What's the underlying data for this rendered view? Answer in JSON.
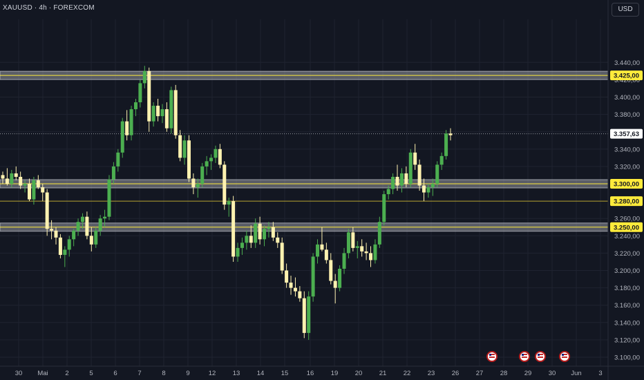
{
  "header": {
    "symbol_label": "XAUUSD · 4h · FOREXCOM"
  },
  "currency_button": {
    "label": "USD"
  },
  "colors": {
    "background": "#131722",
    "bull": "#4caf50",
    "bear": "#fff2b0",
    "price_label": "#ffeb3b",
    "zone_band": "#9598a1",
    "ticks": "#b2b5be"
  },
  "chart_data": {
    "type": "candlestick",
    "title": "XAUUSD · 4h · FOREXCOM",
    "currency": "USD",
    "ylim": [
      3090,
      3458
    ],
    "y_ticks": [
      "3.440,00",
      "3.420,00",
      "3.400,00",
      "3.380,00",
      "3.360,00",
      "3.340,00",
      "3.320,00",
      "3.300,00",
      "3.280,00",
      "3.260,00",
      "3.240,00",
      "3.220,00",
      "3.200,00",
      "3.180,00",
      "3.160,00",
      "3.140,00",
      "3.120,00",
      "3.100,00"
    ],
    "x_ticks": [
      "30",
      "Mai",
      "2",
      "5",
      "6",
      "7",
      "8",
      "9",
      "12",
      "13",
      "14",
      "15",
      "16",
      "19",
      "20",
      "21",
      "22",
      "23",
      "26",
      "27",
      "28",
      "29",
      "30",
      "Jun",
      "3"
    ],
    "grid": true,
    "levels": [
      {
        "value": 3425,
        "label": "3.425,00",
        "style": "zone"
      },
      {
        "value": 3300,
        "label": "3.300,00",
        "style": "zone"
      },
      {
        "value": 3280,
        "label": "3.280,00",
        "style": "line"
      },
      {
        "value": 3250,
        "label": "3.250,00",
        "style": "zone"
      }
    ],
    "last_price": {
      "value": 3357.63,
      "label": "3.357,63"
    },
    "event_icons": [
      "27",
      "29a",
      "29b",
      "30b"
    ],
    "candles": [
      [
        3310,
        3314,
        3300,
        3306
      ],
      [
        3306,
        3318,
        3298,
        3300
      ],
      [
        3300,
        3316,
        3296,
        3312
      ],
      [
        3312,
        3320,
        3304,
        3308
      ],
      [
        3308,
        3314,
        3294,
        3298
      ],
      [
        3298,
        3304,
        3290,
        3300
      ],
      [
        3300,
        3306,
        3280,
        3282
      ],
      [
        3282,
        3308,
        3276,
        3304
      ],
      [
        3304,
        3310,
        3294,
        3296
      ],
      [
        3296,
        3300,
        3280,
        3290
      ],
      [
        3290,
        3294,
        3240,
        3248
      ],
      [
        3248,
        3258,
        3236,
        3246
      ],
      [
        3246,
        3250,
        3230,
        3238
      ],
      [
        3238,
        3242,
        3214,
        3218
      ],
      [
        3218,
        3228,
        3204,
        3224
      ],
      [
        3224,
        3240,
        3216,
        3236
      ],
      [
        3236,
        3248,
        3228,
        3246
      ],
      [
        3246,
        3260,
        3240,
        3256
      ],
      [
        3256,
        3266,
        3248,
        3262
      ],
      [
        3262,
        3268,
        3236,
        3240
      ],
      [
        3240,
        3250,
        3222,
        3230
      ],
      [
        3230,
        3250,
        3226,
        3246
      ],
      [
        3246,
        3264,
        3240,
        3260
      ],
      [
        3260,
        3270,
        3250,
        3262
      ],
      [
        3262,
        3310,
        3258,
        3305
      ],
      [
        3305,
        3325,
        3300,
        3320
      ],
      [
        3320,
        3340,
        3314,
        3336
      ],
      [
        3336,
        3376,
        3330,
        3372
      ],
      [
        3372,
        3385,
        3350,
        3356
      ],
      [
        3356,
        3390,
        3350,
        3386
      ],
      [
        3386,
        3398,
        3378,
        3394
      ],
      [
        3394,
        3420,
        3388,
        3416
      ],
      [
        3416,
        3436,
        3410,
        3430
      ],
      [
        3430,
        3434,
        3360,
        3372
      ],
      [
        3372,
        3394,
        3366,
        3390
      ],
      [
        3390,
        3398,
        3372,
        3378
      ],
      [
        3378,
        3392,
        3370,
        3386
      ],
      [
        3386,
        3394,
        3360,
        3364
      ],
      [
        3364,
        3412,
        3358,
        3408
      ],
      [
        3408,
        3414,
        3352,
        3356
      ],
      [
        3356,
        3362,
        3326,
        3330
      ],
      [
        3330,
        3356,
        3322,
        3350
      ],
      [
        3350,
        3356,
        3302,
        3306
      ],
      [
        3306,
        3312,
        3288,
        3296
      ],
      [
        3296,
        3306,
        3284,
        3300
      ],
      [
        3300,
        3324,
        3296,
        3320
      ],
      [
        3320,
        3332,
        3310,
        3326
      ],
      [
        3326,
        3334,
        3316,
        3330
      ],
      [
        3330,
        3344,
        3324,
        3340
      ],
      [
        3340,
        3346,
        3318,
        3322
      ],
      [
        3322,
        3326,
        3270,
        3276
      ],
      [
        3276,
        3284,
        3262,
        3280
      ],
      [
        3280,
        3286,
        3210,
        3216
      ],
      [
        3216,
        3232,
        3210,
        3226
      ],
      [
        3226,
        3238,
        3218,
        3232
      ],
      [
        3232,
        3246,
        3224,
        3240
      ],
      [
        3240,
        3252,
        3226,
        3232
      ],
      [
        3232,
        3260,
        3226,
        3254
      ],
      [
        3254,
        3262,
        3230,
        3236
      ],
      [
        3236,
        3252,
        3228,
        3248
      ],
      [
        3248,
        3256,
        3238,
        3250
      ],
      [
        3250,
        3256,
        3234,
        3238
      ],
      [
        3238,
        3244,
        3226,
        3232
      ],
      [
        3232,
        3238,
        3196,
        3200
      ],
      [
        3200,
        3208,
        3180,
        3186
      ],
      [
        3186,
        3194,
        3172,
        3180
      ],
      [
        3180,
        3192,
        3170,
        3176
      ],
      [
        3176,
        3182,
        3164,
        3168
      ],
      [
        3168,
        3176,
        3122,
        3128
      ],
      [
        3128,
        3176,
        3120,
        3170
      ],
      [
        3170,
        3220,
        3164,
        3216
      ],
      [
        3216,
        3236,
        3208,
        3230
      ],
      [
        3230,
        3250,
        3222,
        3224
      ],
      [
        3224,
        3232,
        3208,
        3212
      ],
      [
        3212,
        3220,
        3184,
        3188
      ],
      [
        3188,
        3196,
        3162,
        3180
      ],
      [
        3180,
        3206,
        3176,
        3202
      ],
      [
        3202,
        3226,
        3196,
        3220
      ],
      [
        3220,
        3248,
        3214,
        3244
      ],
      [
        3244,
        3250,
        3222,
        3226
      ],
      [
        3226,
        3234,
        3214,
        3228
      ],
      [
        3228,
        3236,
        3216,
        3222
      ],
      [
        3222,
        3232,
        3212,
        3220
      ],
      [
        3220,
        3228,
        3204,
        3212
      ],
      [
        3212,
        3236,
        3208,
        3230
      ],
      [
        3230,
        3262,
        3226,
        3256
      ],
      [
        3256,
        3292,
        3252,
        3288
      ],
      [
        3288,
        3298,
        3282,
        3294
      ],
      [
        3294,
        3312,
        3288,
        3308
      ],
      [
        3308,
        3322,
        3292,
        3298
      ],
      [
        3298,
        3318,
        3290,
        3312
      ],
      [
        3312,
        3320,
        3296,
        3300
      ],
      [
        3300,
        3340,
        3296,
        3336
      ],
      [
        3336,
        3346,
        3316,
        3322
      ],
      [
        3322,
        3328,
        3292,
        3298
      ],
      [
        3298,
        3306,
        3280,
        3290
      ],
      [
        3290,
        3300,
        3284,
        3296
      ],
      [
        3296,
        3306,
        3286,
        3300
      ],
      [
        3300,
        3326,
        3296,
        3322
      ],
      [
        3322,
        3336,
        3316,
        3332
      ],
      [
        3332,
        3362,
        3328,
        3358
      ],
      [
        3358,
        3364,
        3350,
        3356
      ]
    ]
  }
}
